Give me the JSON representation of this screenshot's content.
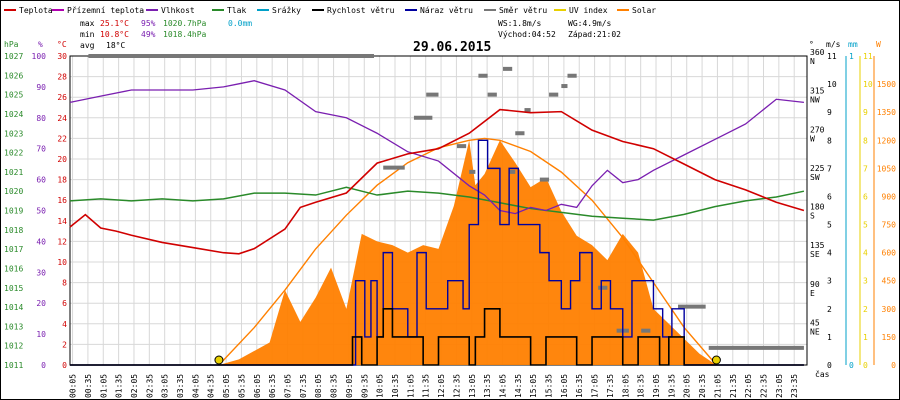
{
  "colors": {
    "teplota": "#d00000",
    "pocitova": "#b000b0",
    "vlhkost": "#7a1fb0",
    "tlak": "#2a8a2a",
    "srazky": "#00a0c8",
    "rychlost": "#000000",
    "naraz": "#0000a0",
    "smer": "#777777",
    "uv": "#e8d000",
    "solar": "#ff8000"
  },
  "legend": {
    "teplota": "Teplota",
    "pocitova": "Přízemní teplota",
    "vlhkost": "Vlhkost",
    "tlak": "Tlak",
    "srazky": "Srážky",
    "rychlost": "Rychlost větru",
    "naraz": "Náraz větru",
    "smer": "Směr větru",
    "uv": "UV index",
    "solar": "Solar"
  },
  "stats": {
    "max_label": "max",
    "max_temp": "25.1°C",
    "max_hum": "95%",
    "max_press": "1020.7hPa",
    "rain": "0.0mm",
    "min_label": "min",
    "min_temp": "10.8°C",
    "min_hum": "49%",
    "min_press": "1018.4hPa",
    "avg_label": "avg",
    "avg_temp": "18°C",
    "ws": "WS:1.8m/s",
    "wg": "WG:4.9m/s",
    "sunrise": "Východ:04:52",
    "sunset": "Západ:21:02"
  },
  "chart_data": {
    "type": "line",
    "title": "29.06.2015",
    "x_label": "čas",
    "axis_units": {
      "press": "hPa",
      "hum": "%",
      "temp": "°C",
      "wind_dir": "°",
      "wind": "m/s",
      "rain": "mm",
      "solar": "W"
    },
    "x_ticks": [
      "00:05",
      "00:35",
      "01:05",
      "01:35",
      "02:05",
      "02:35",
      "03:05",
      "03:35",
      "04:05",
      "04:35",
      "05:05",
      "05:35",
      "06:05",
      "06:35",
      "07:05",
      "07:35",
      "08:05",
      "08:35",
      "09:05",
      "09:35",
      "10:05",
      "10:35",
      "11:05",
      "11:35",
      "12:05",
      "12:35",
      "13:05",
      "13:35",
      "14:05",
      "14:35",
      "15:05",
      "15:35",
      "16:05",
      "16:35",
      "17:05",
      "17:35",
      "18:05",
      "18:35",
      "19:05",
      "19:35",
      "20:05",
      "20:35",
      "21:05",
      "21:35",
      "22:05",
      "22:35",
      "23:05",
      "23:35"
    ],
    "axes": {
      "press": {
        "range": [
          1011,
          1027
        ],
        "ticks": [
          "1011",
          "1012",
          "1013",
          "1014",
          "1015",
          "1016",
          "1017",
          "1018",
          "1019",
          "1020",
          "1021",
          "1022",
          "1023",
          "1024",
          "1025",
          "1026",
          "1027"
        ]
      },
      "hum": {
        "range": [
          0,
          100
        ],
        "ticks": [
          "0",
          "10",
          "20",
          "30",
          "40",
          "50",
          "60",
          "70",
          "80",
          "90",
          "100"
        ]
      },
      "temp": {
        "range": [
          0,
          30
        ],
        "ticks": [
          "0",
          "2",
          "4",
          "6",
          "8",
          "10",
          "12",
          "14",
          "16",
          "18",
          "20",
          "22",
          "24",
          "26",
          "28",
          "30"
        ]
      },
      "wind_dir": {
        "range": [
          0,
          360
        ],
        "ticks": [
          {
            "v": 45,
            "t": "45",
            "d": "NE"
          },
          {
            "v": 90,
            "t": "90",
            "d": "E"
          },
          {
            "v": 135,
            "t": "135",
            "d": "SE"
          },
          {
            "v": 180,
            "t": "180",
            "d": "S"
          },
          {
            "v": 225,
            "t": "225",
            "d": "SW"
          },
          {
            "v": 270,
            "t": "270",
            "d": "W"
          },
          {
            "v": 315,
            "t": "315",
            "d": "NW"
          },
          {
            "v": 360,
            "t": "360",
            "d": "N"
          }
        ]
      },
      "wind": {
        "range": [
          0,
          11
        ],
        "ticks": [
          "0",
          "1",
          "2",
          "3",
          "4",
          "5",
          "6",
          "7",
          "8",
          "9",
          "10",
          "11"
        ]
      },
      "rain": {
        "range": [
          0,
          1
        ],
        "ticks": [
          "0",
          "1"
        ]
      },
      "uv": {
        "range": [
          0,
          11
        ],
        "ticks": [
          "0",
          "1",
          "2",
          "3",
          "4",
          "5",
          "6",
          "7",
          "8",
          "9",
          "10",
          "11"
        ]
      },
      "solar": {
        "range": [
          0,
          1650
        ],
        "ticks": [
          "0",
          "150",
          "300",
          "450",
          "600",
          "750",
          "900",
          "1050",
          "1200",
          "1350",
          "1500"
        ]
      }
    },
    "series": [
      {
        "key": "teplota",
        "name": "Teplota",
        "unit": "temp",
        "x": [
          0,
          0.5,
          1,
          1.5,
          2,
          3,
          4,
          5,
          5.5,
          6,
          7,
          7.5,
          8,
          9,
          10,
          11,
          12,
          13,
          14,
          15,
          16,
          17,
          18,
          19,
          20,
          21,
          22,
          23,
          23.9
        ],
        "y": [
          13.4,
          14.6,
          13.3,
          13.0,
          12.6,
          11.9,
          11.4,
          10.9,
          10.8,
          11.3,
          13.2,
          15.3,
          15.8,
          16.7,
          19.6,
          20.5,
          21.0,
          22.5,
          24.8,
          24.5,
          24.6,
          22.8,
          21.7,
          21.0,
          19.5,
          18.0,
          17.0,
          15.8,
          15.0
        ]
      },
      {
        "key": "vlhkost",
        "name": "Vlhkost",
        "unit": "hum",
        "x": [
          0,
          1,
          2,
          3,
          4,
          5,
          5.5,
          6,
          7,
          8,
          9,
          10,
          11,
          12,
          13,
          13.5,
          14,
          14.5,
          15,
          15.5,
          16,
          16.5,
          17,
          17.5,
          18,
          18.5,
          19,
          20,
          21,
          22,
          23,
          23.9
        ],
        "y": [
          85,
          87,
          89,
          89,
          89,
          90,
          91,
          92,
          89,
          82,
          80,
          75,
          69,
          66,
          58,
          55,
          50,
          49,
          51,
          50,
          52,
          51,
          58,
          63,
          59,
          60,
          63,
          68,
          73,
          78,
          86,
          85
        ]
      },
      {
        "key": "tlak",
        "name": "Tlak",
        "unit": "press",
        "x": [
          0,
          1,
          2,
          3,
          4,
          5,
          6,
          7,
          8,
          9,
          10,
          11,
          12,
          13,
          14,
          15,
          16,
          17,
          18,
          19,
          20,
          21,
          22,
          23,
          23.9
        ],
        "y": [
          1019.5,
          1019.6,
          1019.5,
          1019.6,
          1019.5,
          1019.6,
          1019.9,
          1019.9,
          1019.8,
          1020.2,
          1019.8,
          1020.0,
          1019.9,
          1019.7,
          1019.4,
          1019.1,
          1018.9,
          1018.7,
          1018.6,
          1018.5,
          1018.8,
          1019.2,
          1019.5,
          1019.7,
          1020.0
        ]
      },
      {
        "key": "rychlost",
        "name": "Rychlost větru",
        "unit": "wind",
        "x": [
          0,
          4,
          7.5,
          8,
          8.5,
          9,
          9.2,
          9.5,
          10,
          10.2,
          10.5,
          11,
          11.5,
          12,
          12.5,
          13,
          13.2,
          13.5,
          14,
          14.5,
          15,
          15.5,
          16,
          16.5,
          17,
          17.5,
          18,
          18.5,
          19,
          19.2,
          19.5,
          20,
          20.5,
          21,
          22,
          23.9
        ],
        "y": [
          0,
          0,
          0,
          0,
          0,
          0,
          1,
          0,
          1,
          2,
          1,
          1,
          0,
          1,
          1,
          0,
          1,
          2,
          1,
          1,
          0,
          1,
          1,
          0,
          1,
          1,
          0,
          1,
          1,
          0,
          1,
          0,
          0,
          0,
          0,
          0
        ]
      },
      {
        "key": "naraz",
        "name": "Náraz větru",
        "unit": "wind",
        "x": [
          0,
          4,
          9,
          9.3,
          9.6,
          9.8,
          10,
          10.2,
          10.5,
          11,
          11.3,
          11.6,
          12,
          12.3,
          12.8,
          13,
          13.3,
          13.6,
          14,
          14.3,
          14.6,
          15,
          15.3,
          15.6,
          16,
          16.3,
          16.6,
          17,
          17.3,
          17.6,
          18,
          18.3,
          18.6,
          19,
          19.3,
          19.6,
          20,
          20.5,
          21,
          22,
          23.9
        ],
        "y": [
          0,
          0,
          0,
          3,
          1,
          3,
          1,
          4,
          2,
          1,
          4,
          2,
          2,
          3,
          2,
          5,
          8,
          7,
          5,
          7,
          5,
          5,
          4,
          3,
          2,
          3,
          4,
          2,
          3,
          2,
          1,
          3,
          3,
          2,
          1,
          2,
          0,
          0,
          0,
          0,
          0
        ]
      },
      {
        "key": "solar",
        "name": "Solar",
        "unit": "solar",
        "x": [
          4.85,
          5.5,
          6.5,
          7,
          7.5,
          8,
          8.5,
          9,
          9.5,
          10,
          10.5,
          11,
          11.5,
          12,
          12.5,
          13,
          13.2,
          13.5,
          14,
          14.5,
          15,
          15.5,
          16,
          16.5,
          17,
          17.5,
          18,
          18.5,
          19,
          19.5,
          20,
          20.5,
          21.05
        ],
        "y": [
          0,
          30,
          120,
          400,
          230,
          360,
          520,
          300,
          700,
          660,
          640,
          600,
          640,
          620,
          850,
          1200,
          960,
          1020,
          1200,
          1080,
          950,
          1000,
          820,
          690,
          640,
          560,
          700,
          600,
          300,
          220,
          140,
          60,
          0
        ]
      },
      {
        "key": "solar_theory",
        "name": "Solar",
        "unit": "solar",
        "x": [
          4.85,
          6,
          7,
          8,
          9,
          10,
          11,
          12,
          13,
          13.5,
          14,
          15,
          16,
          17,
          18,
          19,
          20,
          21.05
        ],
        "y": [
          0,
          200,
          400,
          620,
          800,
          960,
          1080,
          1160,
          1200,
          1210,
          1200,
          1140,
          1030,
          880,
          680,
          440,
          200,
          0
        ]
      }
    ],
    "wind_dir_segments": [
      {
        "from": 0.6,
        "to": 9.9,
        "deg": 360
      },
      {
        "from": 10.2,
        "to": 10.9,
        "deg": 230
      },
      {
        "from": 11.2,
        "to": 11.8,
        "deg": 288
      },
      {
        "from": 11.6,
        "to": 12.0,
        "deg": 315
      },
      {
        "from": 12.6,
        "to": 12.9,
        "deg": 255
      },
      {
        "from": 13.0,
        "to": 13.2,
        "deg": 225
      },
      {
        "from": 13.3,
        "to": 13.6,
        "deg": 337
      },
      {
        "from": 13.6,
        "to": 13.9,
        "deg": 315
      },
      {
        "from": 14.1,
        "to": 14.4,
        "deg": 345
      },
      {
        "from": 14.3,
        "to": 14.5,
        "deg": 225
      },
      {
        "from": 14.5,
        "to": 14.8,
        "deg": 270
      },
      {
        "from": 14.8,
        "to": 15.0,
        "deg": 297
      },
      {
        "from": 15.3,
        "to": 15.6,
        "deg": 216
      },
      {
        "from": 15.6,
        "to": 15.9,
        "deg": 315
      },
      {
        "from": 16.0,
        "to": 16.2,
        "deg": 325
      },
      {
        "from": 16.2,
        "to": 16.5,
        "deg": 337
      },
      {
        "from": 17.2,
        "to": 17.5,
        "deg": 90
      },
      {
        "from": 17.8,
        "to": 18.2,
        "deg": 40
      },
      {
        "from": 18.6,
        "to": 18.9,
        "deg": 40
      },
      {
        "from": 19.8,
        "to": 20.7,
        "deg": 68
      },
      {
        "from": 20.8,
        "to": 23.9,
        "deg": 20
      }
    ],
    "sun_markers": [
      4.85,
      21.05
    ]
  }
}
